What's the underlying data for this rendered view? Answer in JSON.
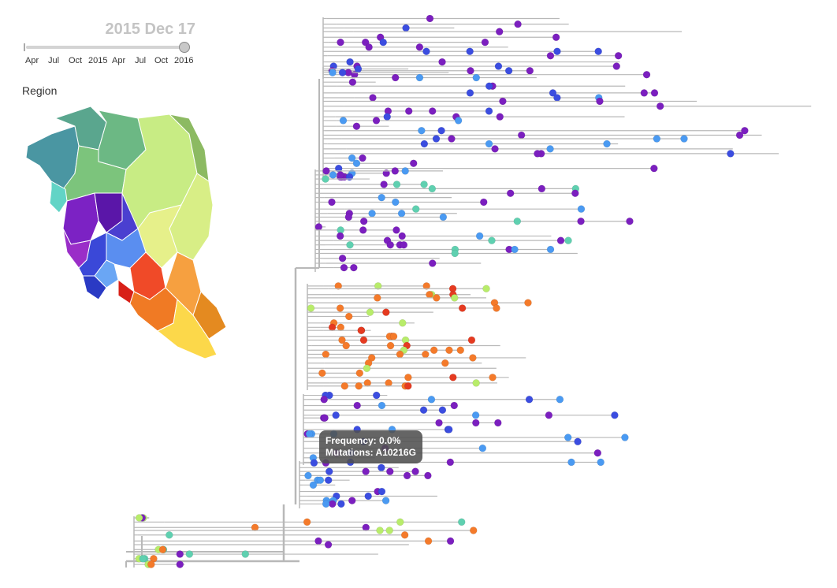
{
  "date_display": "2015 Dec 17",
  "timeline": {
    "ticks": [
      "Apr",
      "Jul",
      "Oct",
      "2015",
      "Apr",
      "Jul",
      "Oct",
      "2016"
    ]
  },
  "legend": {
    "title": "Region"
  },
  "tooltip": {
    "frequency": "Frequency: 0.0%",
    "mutations": "Mutations: A10216G"
  },
  "colors": {
    "branch": "#b8b8b8",
    "timeline_track": "#d4d4d4",
    "date_text": "#c4c4c4",
    "purple": "#7b1fbf",
    "blue": "#3b4de0",
    "light_blue": "#4a9af2",
    "teal": "#5fd0b0",
    "lime": "#b8ec6a",
    "orange": "#f47a2a",
    "red": "#e53a20"
  }
}
